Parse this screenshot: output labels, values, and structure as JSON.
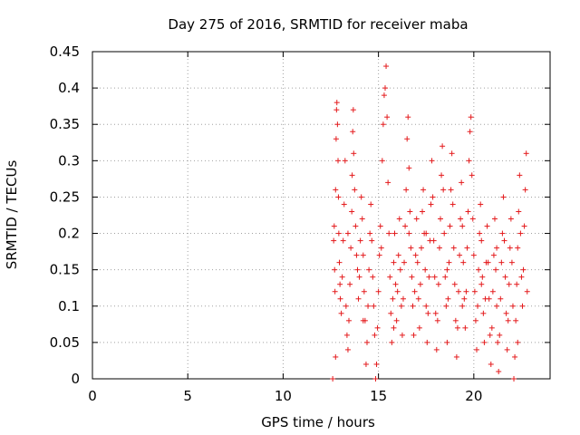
{
  "chart_data": {
    "type": "scatter",
    "title": "Day 275 of 2016, SRMTID for receiver maba",
    "xlabel": "GPS time / hours",
    "ylabel": "SRMTID / TECUs",
    "xlim": [
      0,
      24
    ],
    "ylim": [
      0,
      0.45
    ],
    "xticks": [
      0,
      5,
      10,
      15,
      20
    ],
    "xtick_labels": [
      "0",
      "5",
      "10",
      "15",
      "20"
    ],
    "yticks": [
      0,
      0.05,
      0.1,
      0.15,
      0.2,
      0.25,
      0.3,
      0.35,
      0.4,
      0.45
    ],
    "ytick_labels": [
      "0",
      "0.05",
      "0.1",
      "0.15",
      "0.2",
      "0.25",
      "0.3",
      "0.35",
      "0.4",
      "0.45"
    ],
    "grid": true,
    "marker": "plus",
    "color": "#e41a1c",
    "series": [
      {
        "points": [
          [
            12.6,
            0.0
          ],
          [
            12.65,
            0.19
          ],
          [
            12.68,
            0.21
          ],
          [
            12.7,
            0.15
          ],
          [
            12.72,
            0.12
          ],
          [
            12.75,
            0.26
          ],
          [
            12.78,
            0.33
          ],
          [
            12.8,
            0.37
          ],
          [
            12.82,
            0.38
          ],
          [
            12.85,
            0.35
          ],
          [
            12.88,
            0.3
          ],
          [
            12.9,
            0.25
          ],
          [
            12.92,
            0.2
          ],
          [
            12.95,
            0.16
          ],
          [
            12.98,
            0.13
          ],
          [
            13.0,
            0.11
          ],
          [
            13.05,
            0.09
          ],
          [
            13.1,
            0.14
          ],
          [
            13.15,
            0.19
          ],
          [
            13.2,
            0.24
          ],
          [
            13.25,
            0.3
          ],
          [
            13.3,
            0.1
          ],
          [
            13.35,
            0.06
          ],
          [
            13.4,
            0.04
          ],
          [
            13.45,
            0.08
          ],
          [
            13.5,
            0.13
          ],
          [
            13.55,
            0.18
          ],
          [
            13.6,
            0.23
          ],
          [
            13.62,
            0.28
          ],
          [
            13.65,
            0.34
          ],
          [
            13.68,
            0.37
          ],
          [
            13.7,
            0.31
          ],
          [
            13.75,
            0.26
          ],
          [
            13.8,
            0.21
          ],
          [
            13.85,
            0.17
          ],
          [
            13.9,
            0.15
          ],
          [
            13.95,
            0.11
          ],
          [
            14.0,
            0.14
          ],
          [
            14.05,
            0.19
          ],
          [
            14.1,
            0.25
          ],
          [
            14.15,
            0.22
          ],
          [
            14.2,
            0.17
          ],
          [
            14.25,
            0.12
          ],
          [
            14.3,
            0.08
          ],
          [
            14.35,
            0.02
          ],
          [
            14.4,
            0.05
          ],
          [
            14.45,
            0.1
          ],
          [
            14.5,
            0.15
          ],
          [
            14.55,
            0.2
          ],
          [
            14.6,
            0.24
          ],
          [
            14.65,
            0.19
          ],
          [
            14.7,
            0.14
          ],
          [
            14.75,
            0.1
          ],
          [
            14.8,
            0.06
          ],
          [
            14.85,
            0.0
          ],
          [
            14.9,
            0.02
          ],
          [
            14.95,
            0.07
          ],
          [
            15.0,
            0.12
          ],
          [
            15.05,
            0.17
          ],
          [
            15.1,
            0.21
          ],
          [
            15.15,
            0.18
          ],
          [
            15.2,
            0.3
          ],
          [
            15.25,
            0.35
          ],
          [
            15.3,
            0.39
          ],
          [
            15.35,
            0.4
          ],
          [
            15.4,
            0.43
          ],
          [
            15.45,
            0.36
          ],
          [
            15.5,
            0.27
          ],
          [
            15.55,
            0.2
          ],
          [
            15.6,
            0.14
          ],
          [
            15.65,
            0.09
          ],
          [
            15.7,
            0.05
          ],
          [
            15.75,
            0.11
          ],
          [
            15.8,
            0.16
          ],
          [
            15.85,
            0.2
          ],
          [
            15.9,
            0.13
          ],
          [
            15.95,
            0.08
          ],
          [
            16.0,
            0.12
          ],
          [
            16.05,
            0.17
          ],
          [
            16.1,
            0.22
          ],
          [
            16.15,
            0.15
          ],
          [
            16.2,
            0.1
          ],
          [
            16.25,
            0.06
          ],
          [
            16.3,
            0.11
          ],
          [
            16.35,
            0.16
          ],
          [
            16.4,
            0.21
          ],
          [
            16.45,
            0.26
          ],
          [
            16.5,
            0.33
          ],
          [
            16.55,
            0.36
          ],
          [
            16.6,
            0.29
          ],
          [
            16.65,
            0.23
          ],
          [
            16.7,
            0.18
          ],
          [
            16.75,
            0.14
          ],
          [
            16.8,
            0.1
          ],
          [
            16.85,
            0.06
          ],
          [
            16.9,
            0.12
          ],
          [
            16.95,
            0.17
          ],
          [
            17.0,
            0.22
          ],
          [
            17.05,
            0.16
          ],
          [
            17.1,
            0.11
          ],
          [
            17.15,
            0.07
          ],
          [
            17.2,
            0.13
          ],
          [
            17.25,
            0.18
          ],
          [
            17.3,
            0.23
          ],
          [
            17.35,
            0.26
          ],
          [
            17.4,
            0.2
          ],
          [
            17.45,
            0.15
          ],
          [
            17.5,
            0.1
          ],
          [
            17.55,
            0.05
          ],
          [
            17.6,
            0.09
          ],
          [
            17.65,
            0.14
          ],
          [
            17.7,
            0.19
          ],
          [
            17.75,
            0.24
          ],
          [
            17.8,
            0.3
          ],
          [
            17.85,
            0.25
          ],
          [
            17.9,
            0.19
          ],
          [
            17.95,
            0.14
          ],
          [
            18.0,
            0.09
          ],
          [
            18.05,
            0.04
          ],
          [
            18.1,
            0.08
          ],
          [
            18.15,
            0.13
          ],
          [
            18.2,
            0.18
          ],
          [
            18.25,
            0.22
          ],
          [
            18.3,
            0.28
          ],
          [
            18.35,
            0.32
          ],
          [
            18.4,
            0.26
          ],
          [
            18.45,
            0.2
          ],
          [
            18.5,
            0.14
          ],
          [
            18.55,
            0.1
          ],
          [
            18.6,
            0.05
          ],
          [
            18.65,
            0.11
          ],
          [
            18.7,
            0.16
          ],
          [
            18.75,
            0.21
          ],
          [
            18.8,
            0.26
          ],
          [
            18.85,
            0.31
          ],
          [
            18.9,
            0.24
          ],
          [
            18.95,
            0.18
          ],
          [
            19.0,
            0.13
          ],
          [
            19.05,
            0.08
          ],
          [
            19.1,
            0.03
          ],
          [
            19.15,
            0.07
          ],
          [
            19.2,
            0.12
          ],
          [
            19.25,
            0.17
          ],
          [
            19.3,
            0.22
          ],
          [
            19.35,
            0.27
          ],
          [
            19.4,
            0.21
          ],
          [
            19.45,
            0.16
          ],
          [
            19.5,
            0.11
          ],
          [
            19.55,
            0.07
          ],
          [
            19.6,
            0.12
          ],
          [
            19.65,
            0.18
          ],
          [
            19.7,
            0.23
          ],
          [
            19.75,
            0.3
          ],
          [
            19.8,
            0.34
          ],
          [
            19.85,
            0.36
          ],
          [
            19.9,
            0.28
          ],
          [
            19.95,
            0.22
          ],
          [
            20.0,
            0.17
          ],
          [
            20.05,
            0.12
          ],
          [
            20.1,
            0.08
          ],
          [
            20.15,
            0.04
          ],
          [
            20.2,
            0.1
          ],
          [
            20.25,
            0.15
          ],
          [
            20.3,
            0.2
          ],
          [
            20.35,
            0.24
          ],
          [
            20.4,
            0.19
          ],
          [
            20.45,
            0.14
          ],
          [
            20.5,
            0.09
          ],
          [
            20.55,
            0.05
          ],
          [
            20.6,
            0.11
          ],
          [
            20.65,
            0.16
          ],
          [
            20.7,
            0.21
          ],
          [
            20.75,
            0.16
          ],
          [
            20.8,
            0.11
          ],
          [
            20.85,
            0.06
          ],
          [
            20.9,
            0.02
          ],
          [
            20.95,
            0.07
          ],
          [
            21.0,
            0.12
          ],
          [
            21.05,
            0.17
          ],
          [
            21.1,
            0.22
          ],
          [
            21.15,
            0.15
          ],
          [
            21.2,
            0.1
          ],
          [
            21.25,
            0.05
          ],
          [
            21.3,
            0.01
          ],
          [
            21.35,
            0.06
          ],
          [
            21.4,
            0.11
          ],
          [
            21.45,
            0.16
          ],
          [
            21.5,
            0.2
          ],
          [
            21.55,
            0.25
          ],
          [
            21.6,
            0.19
          ],
          [
            21.65,
            0.14
          ],
          [
            21.7,
            0.09
          ],
          [
            21.75,
            0.04
          ],
          [
            21.8,
            0.08
          ],
          [
            21.85,
            0.13
          ],
          [
            21.9,
            0.18
          ],
          [
            21.95,
            0.22
          ],
          [
            22.0,
            0.16
          ],
          [
            22.05,
            0.1
          ],
          [
            22.1,
            0.0
          ],
          [
            22.15,
            0.03
          ],
          [
            22.2,
            0.08
          ],
          [
            22.25,
            0.13
          ],
          [
            22.3,
            0.18
          ],
          [
            22.35,
            0.23
          ],
          [
            22.4,
            0.28
          ],
          [
            22.45,
            0.2
          ],
          [
            22.5,
            0.14
          ],
          [
            22.55,
            0.1
          ],
          [
            22.6,
            0.15
          ],
          [
            22.65,
            0.21
          ],
          [
            22.7,
            0.26
          ],
          [
            22.75,
            0.31
          ],
          [
            22.8,
            0.12
          ],
          [
            12.75,
            0.03
          ],
          [
            13.4,
            0.2
          ],
          [
            14.2,
            0.08
          ],
          [
            15.8,
            0.07
          ],
          [
            16.6,
            0.2
          ],
          [
            17.5,
            0.2
          ],
          [
            18.6,
            0.15
          ],
          [
            19.4,
            0.1
          ],
          [
            20.4,
            0.13
          ],
          [
            21.2,
            0.18
          ],
          [
            22.3,
            0.05
          ]
        ]
      }
    ]
  }
}
